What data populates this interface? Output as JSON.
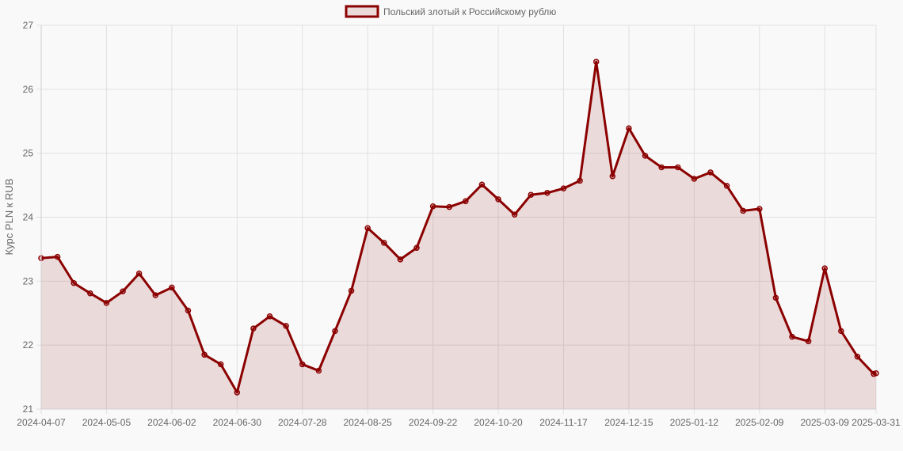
{
  "chart_data": {
    "type": "line",
    "ylabel": "Курс PLN к RUB",
    "ylim": [
      21,
      27
    ],
    "yticks": [
      "21",
      "22",
      "23",
      "24",
      "25",
      "26",
      "27"
    ],
    "xticks": [
      "2024-04-07",
      "2024-05-05",
      "2024-06-02",
      "2024-06-30",
      "2024-07-28",
      "2024-08-25",
      "2024-09-22",
      "2024-10-20",
      "2024-11-17",
      "2024-12-15",
      "2025-01-12",
      "2025-02-09",
      "2025-03-09",
      "2025-03-31"
    ],
    "grid": true,
    "legend": "top-center",
    "series": [
      {
        "name": "Польский злотый к Российскому рублю",
        "color": "#8b0000",
        "fill": "rgba(139,0,0,0.12)",
        "x": [
          "2024-04-07",
          "2024-04-14",
          "2024-04-21",
          "2024-04-28",
          "2024-05-05",
          "2024-05-12",
          "2024-05-19",
          "2024-05-26",
          "2024-06-02",
          "2024-06-09",
          "2024-06-16",
          "2024-06-23",
          "2024-06-30",
          "2024-07-07",
          "2024-07-14",
          "2024-07-21",
          "2024-07-28",
          "2024-08-04",
          "2024-08-11",
          "2024-08-18",
          "2024-08-25",
          "2024-09-01",
          "2024-09-08",
          "2024-09-15",
          "2024-09-22",
          "2024-09-29",
          "2024-10-06",
          "2024-10-13",
          "2024-10-20",
          "2024-10-27",
          "2024-11-03",
          "2024-11-10",
          "2024-11-17",
          "2024-11-24",
          "2024-12-01",
          "2024-12-08",
          "2024-12-15",
          "2024-12-22",
          "2024-12-29",
          "2025-01-05",
          "2025-01-12",
          "2025-01-19",
          "2025-01-26",
          "2025-02-02",
          "2025-02-09",
          "2025-02-16",
          "2025-02-23",
          "2025-03-02",
          "2025-03-09",
          "2025-03-16",
          "2025-03-23",
          "2025-03-30",
          "2025-03-31"
        ],
        "values": [
          23.36,
          23.38,
          22.97,
          22.81,
          22.66,
          22.84,
          23.12,
          22.78,
          22.9,
          22.54,
          21.85,
          21.7,
          21.26,
          22.26,
          22.45,
          22.3,
          21.7,
          21.6,
          22.22,
          22.85,
          23.83,
          23.6,
          23.34,
          23.52,
          24.17,
          24.16,
          24.25,
          24.51,
          24.28,
          24.04,
          24.35,
          24.38,
          24.45,
          24.57,
          26.43,
          24.64,
          25.39,
          24.96,
          24.78,
          24.78,
          24.6,
          24.7,
          24.49,
          24.1,
          24.13,
          22.74,
          22.13,
          22.06,
          23.2,
          22.22,
          21.82,
          21.55,
          21.56
        ]
      }
    ]
  }
}
